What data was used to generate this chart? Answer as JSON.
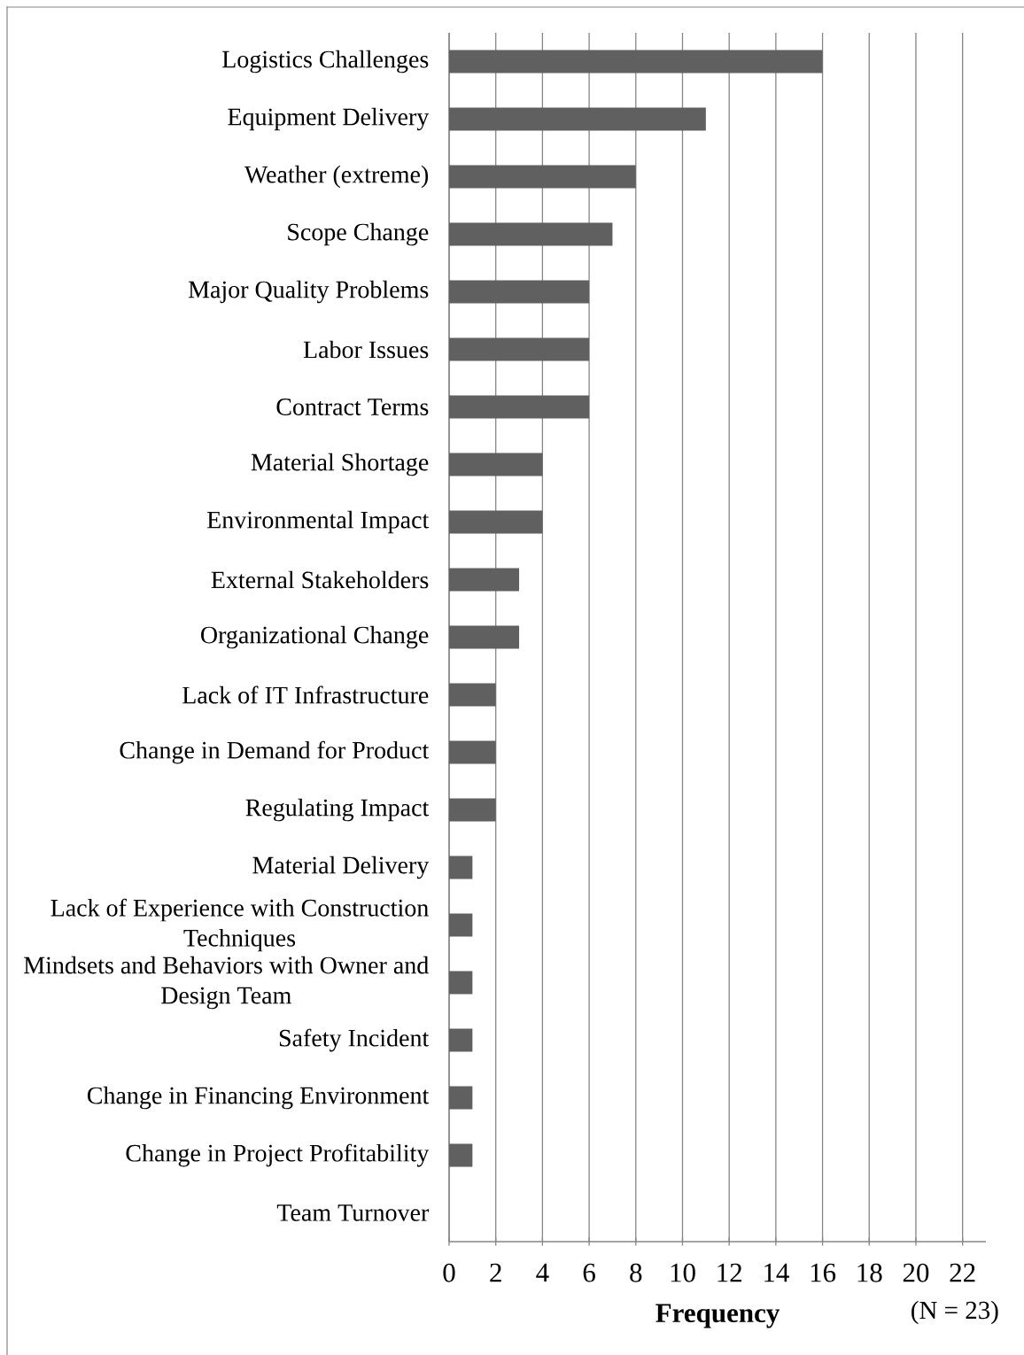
{
  "chart_data": {
    "type": "bar",
    "orientation": "horizontal",
    "categories": [
      "Logistics Challenges",
      "Equipment Delivery",
      "Weather (extreme)",
      "Scope Change",
      "Major Quality Problems",
      "Labor Issues",
      "Contract Terms",
      "Material Shortage",
      "Environmental Impact",
      "External Stakeholders",
      "Organizational Change",
      "Lack of IT Infrastructure",
      "Change in Demand for Product",
      "Regulating Impact",
      "Material Delivery",
      "Lack of Experience with Construction Techniques",
      "Mindsets and Behaviors with Owner and Design Team",
      "Safety Incident",
      "Change in Financing Environment",
      "Change in Project Profitability",
      "Team Turnover"
    ],
    "values": [
      16,
      11,
      8,
      7,
      6,
      6,
      6,
      4,
      4,
      3,
      3,
      2,
      2,
      2,
      1,
      1,
      1,
      1,
      1,
      1,
      0
    ],
    "color": "#606060",
    "xlabel": "Frequency",
    "xlim": [
      0,
      23
    ],
    "xticks": [
      0,
      2,
      4,
      6,
      8,
      10,
      12,
      14,
      16,
      18,
      20,
      22
    ],
    "grid": "x",
    "annotations": [
      "(N = 23)"
    ]
  }
}
